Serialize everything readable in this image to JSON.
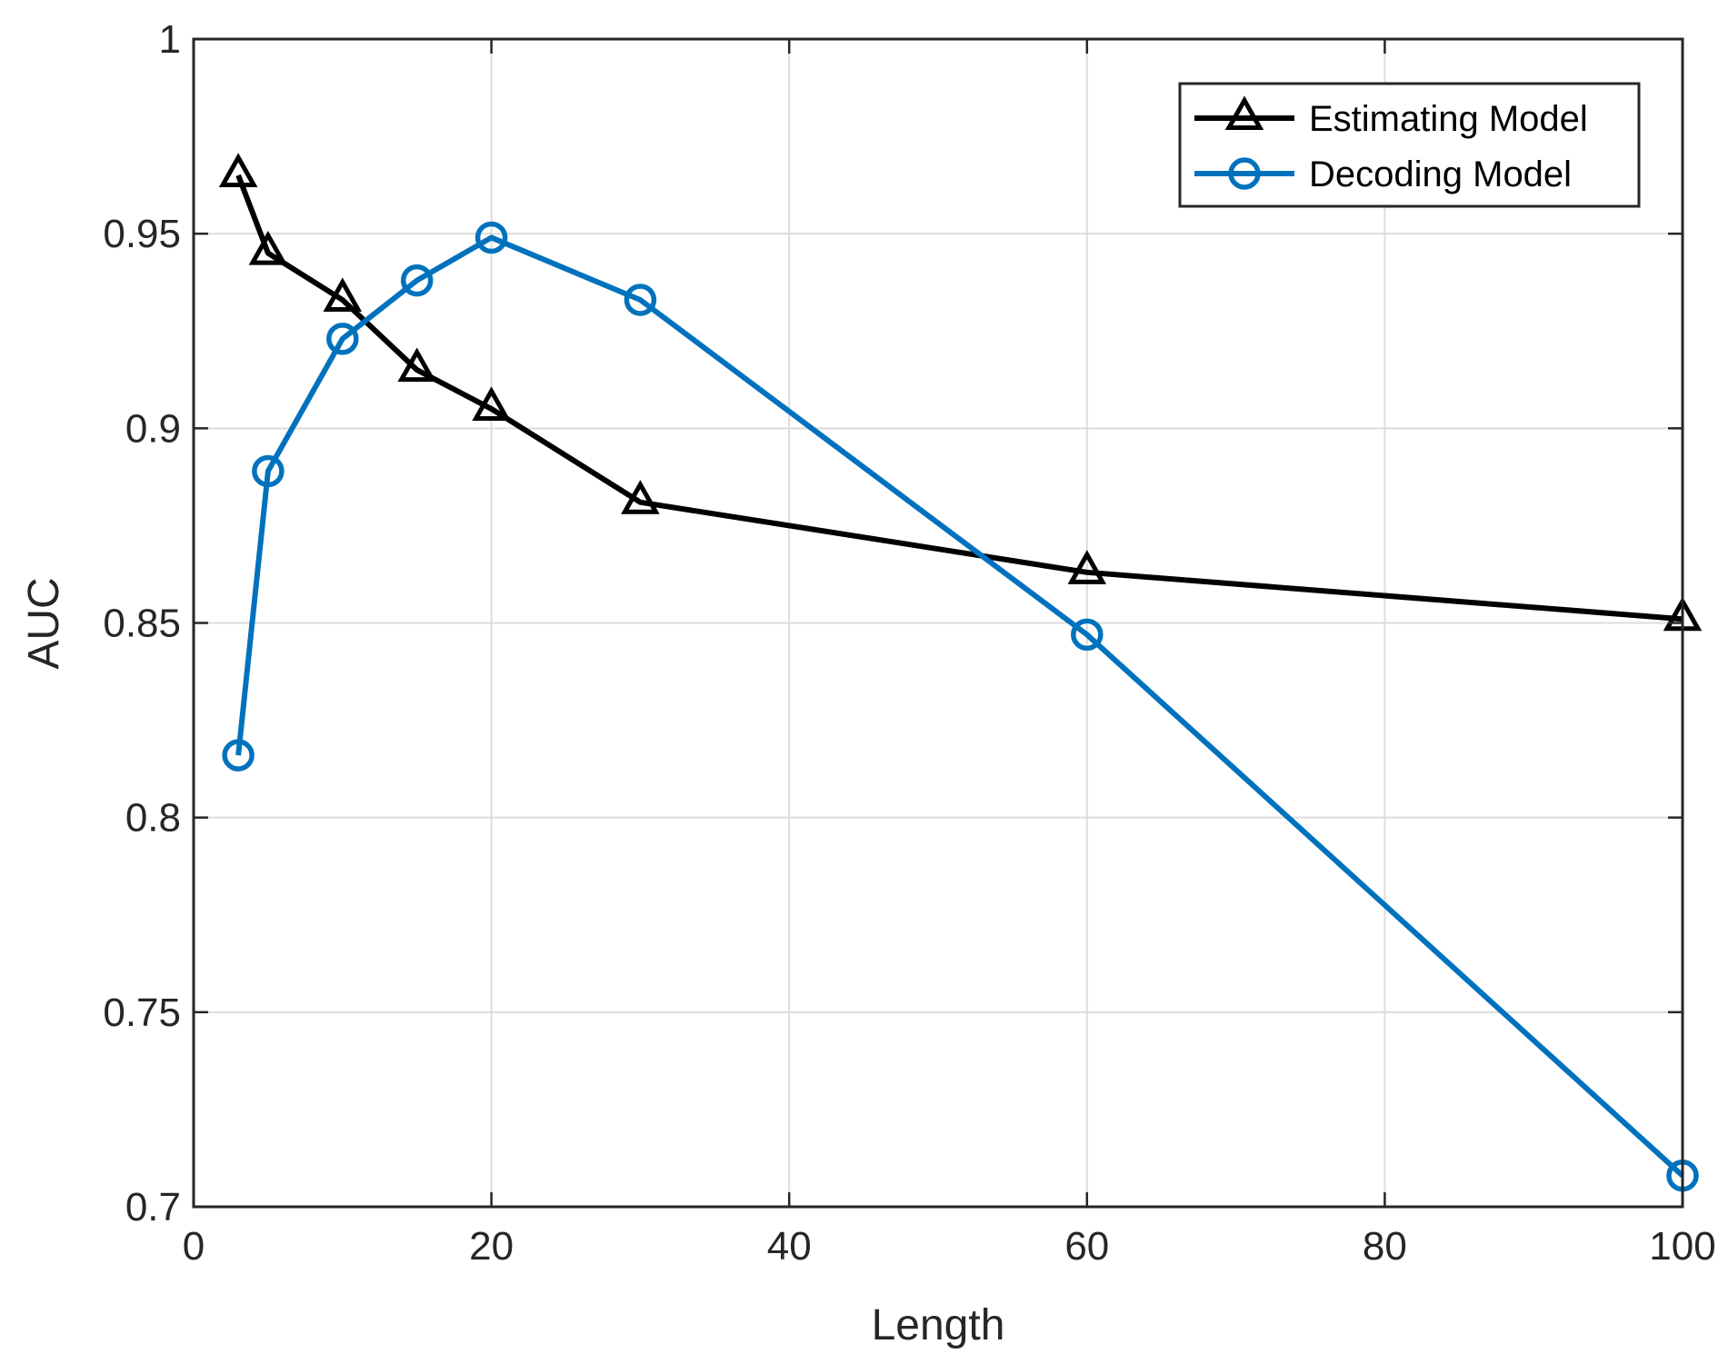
{
  "chart_data": {
    "type": "line",
    "title": "",
    "xlabel": "Length",
    "ylabel": "AUC",
    "xlim": [
      0,
      100
    ],
    "ylim": [
      0.7,
      1
    ],
    "x_ticks": [
      "0",
      "20",
      "40",
      "60",
      "80",
      "100"
    ],
    "y_ticks": [
      "0.7",
      "0.75",
      "0.8",
      "0.85",
      "0.9",
      "0.95",
      "1"
    ],
    "grid": true,
    "legend_position": "top-right",
    "series": [
      {
        "name": "Estimating Model",
        "marker": "triangle",
        "color": "#000000",
        "x": [
          3,
          5,
          10,
          15,
          20,
          30,
          60,
          100
        ],
        "y": [
          0.965,
          0.945,
          0.933,
          0.915,
          0.905,
          0.881,
          0.863,
          0.851
        ]
      },
      {
        "name": "Decoding Model",
        "marker": "circle",
        "color": "#0072BD",
        "x": [
          3,
          5,
          10,
          15,
          20,
          30,
          60,
          100
        ],
        "y": [
          0.816,
          0.889,
          0.923,
          0.938,
          0.949,
          0.933,
          0.847,
          0.708
        ]
      }
    ]
  }
}
